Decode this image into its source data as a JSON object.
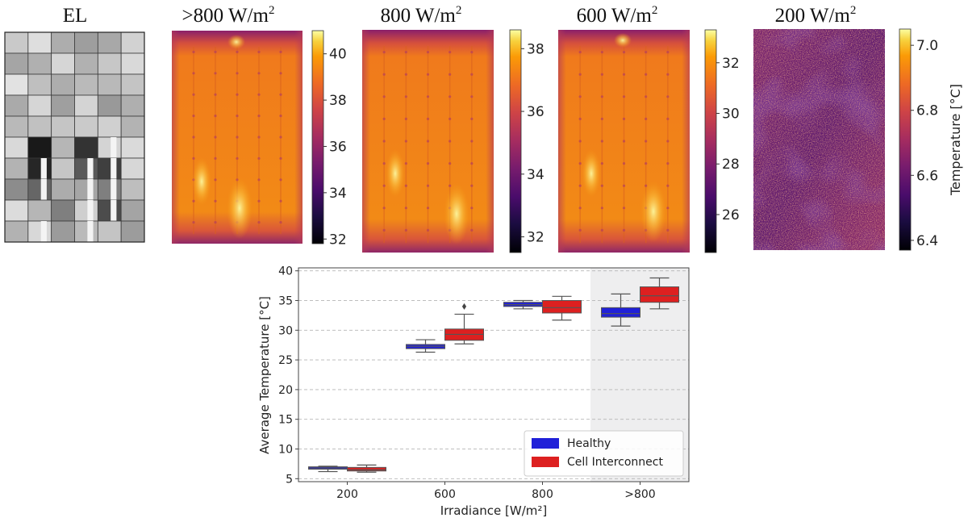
{
  "panels": [
    {
      "title": "EL",
      "kind": "el"
    },
    {
      "title": ">800 W/m",
      "sup": "2",
      "kind": "thermal",
      "cbar_ticks": [
        32,
        34,
        36,
        38,
        40
      ],
      "cbar_min": 31.8,
      "cbar_max": 41.0,
      "hot_spot_top": true
    },
    {
      "title": "800 W/m",
      "sup": "2",
      "kind": "thermal",
      "cbar_ticks": [
        32,
        34,
        36,
        38
      ],
      "cbar_min": 31.5,
      "cbar_max": 38.6,
      "hot_spot_top": false
    },
    {
      "title": "600 W/m",
      "sup": "2",
      "kind": "thermal",
      "cbar_ticks": [
        26,
        28,
        30,
        32
      ],
      "cbar_min": 24.5,
      "cbar_max": 33.3,
      "hot_spot_top": true
    },
    {
      "title": "200 W/m",
      "sup": "2",
      "kind": "noise",
      "cbar_ticks": [
        "6.4",
        "6.6",
        "6.8",
        "7.0"
      ],
      "cbar_min": 6.37,
      "cbar_max": 7.05,
      "cbar_label": "Temperature [°C]"
    }
  ],
  "chart_data": {
    "type": "box",
    "categories": [
      "200",
      "600",
      "800",
      ">800"
    ],
    "xlabel": "Irradiance [W/m²]",
    "ylabel": "Average Temperature [°C]",
    "ylim": [
      4.5,
      40.5
    ],
    "yticks": [
      5,
      10,
      15,
      20,
      25,
      30,
      35,
      40
    ],
    "grid": true,
    "highlight_category": ">800",
    "legend_position": "lower-right",
    "series": [
      {
        "name": "Healthy",
        "color": "#2020d8",
        "boxes": [
          {
            "min": 6.2,
            "q1": 6.6,
            "median": 6.8,
            "q3": 7.0,
            "max": 7.1
          },
          {
            "min": 26.3,
            "q1": 26.9,
            "median": 27.3,
            "q3": 27.6,
            "max": 28.4
          },
          {
            "min": 33.6,
            "q1": 34.0,
            "median": 34.3,
            "q3": 34.7,
            "max": 35.0
          },
          {
            "min": 30.7,
            "q1": 32.2,
            "median": 32.8,
            "q3": 33.8,
            "max": 36.1
          }
        ]
      },
      {
        "name": "Cell Interconnect",
        "color": "#dd2020",
        "boxes": [
          {
            "min": 6.1,
            "q1": 6.3,
            "median": 6.5,
            "q3": 6.9,
            "max": 7.3
          },
          {
            "min": 27.7,
            "q1": 28.3,
            "median": 29.3,
            "q3": 30.2,
            "max": 32.7,
            "outliers": [
              34.0
            ]
          },
          {
            "min": 31.7,
            "q1": 32.9,
            "median": 33.8,
            "q3": 35.0,
            "max": 35.7
          },
          {
            "min": 33.6,
            "q1": 34.7,
            "median": 35.8,
            "q3": 37.3,
            "max": 38.8
          }
        ]
      }
    ]
  }
}
